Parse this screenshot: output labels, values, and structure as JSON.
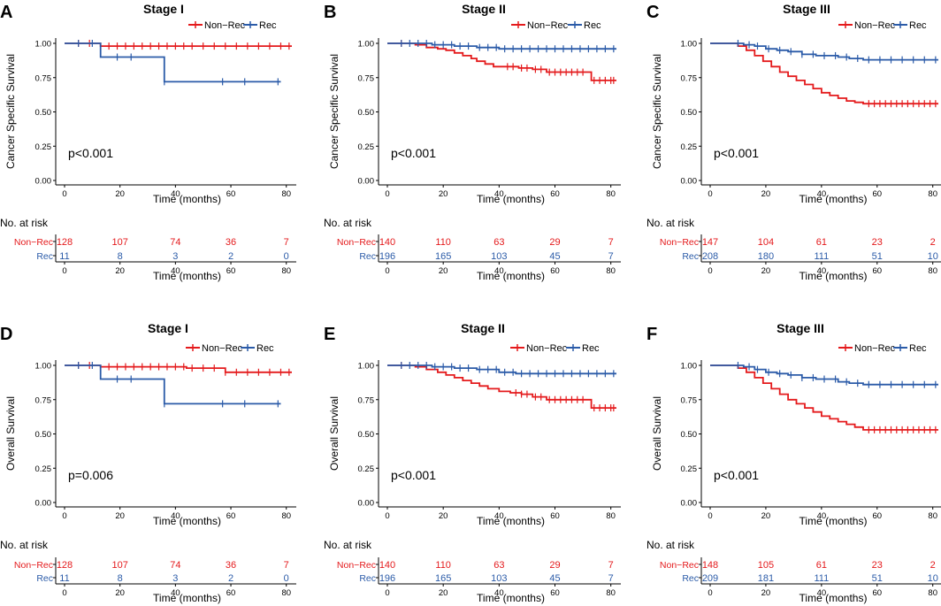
{
  "colors": {
    "non_rec": "#E41A1C",
    "rec": "#2B5BA8",
    "axis": "#000000"
  },
  "common": {
    "xlabel": "Time (months)",
    "risk_header": "No. at risk",
    "xticks": [
      0,
      20,
      40,
      60,
      80
    ],
    "yticks": [
      "0.00",
      "0.25",
      "0.50",
      "0.75",
      "1.00"
    ],
    "legend": [
      "Non−Rec",
      "Rec"
    ]
  },
  "chart_data": [
    {
      "type": "line",
      "letter": "A",
      "title": "Stage I",
      "ylabel": "Cancer Specific Survival",
      "pvalue": "p<0.001",
      "xlim": [
        0,
        82
      ],
      "ylim": [
        0,
        1
      ],
      "series": [
        {
          "name": "Non−Rec",
          "x": [
            0,
            13,
            82
          ],
          "y": [
            1.0,
            0.98,
            0.98
          ],
          "censor": [
            5,
            9,
            16,
            19,
            22,
            25,
            28,
            31,
            34,
            37,
            40,
            43,
            46,
            50,
            54,
            58,
            62,
            66,
            70,
            74,
            78,
            81
          ]
        },
        {
          "name": "Rec",
          "x": [
            0,
            13,
            36,
            78
          ],
          "y": [
            1.0,
            0.9,
            0.72,
            0.72
          ],
          "censor": [
            5,
            10,
            19,
            24,
            36,
            57,
            65,
            77
          ]
        }
      ],
      "risk": {
        "x": [
          0,
          20,
          40,
          60,
          80
        ],
        "non_rec": [
          "128",
          "107",
          "74",
          "36",
          "7"
        ],
        "rec": [
          "11",
          "8",
          "3",
          "2",
          "0"
        ]
      }
    },
    {
      "type": "line",
      "letter": "B",
      "title": "Stage II",
      "ylabel": "Cancer Specific Survival",
      "pvalue": "p<0.001",
      "xlim": [
        0,
        82
      ],
      "ylim": [
        0,
        1
      ],
      "series": [
        {
          "name": "Non−Rec",
          "x": [
            0,
            10,
            14,
            18,
            21,
            24,
            27,
            30,
            32,
            35,
            38,
            42,
            47,
            52,
            57,
            63,
            73,
            82
          ],
          "y": [
            1.0,
            0.99,
            0.97,
            0.96,
            0.95,
            0.93,
            0.91,
            0.89,
            0.87,
            0.85,
            0.83,
            0.83,
            0.82,
            0.81,
            0.79,
            0.79,
            0.73,
            0.73
          ],
          "censor": [
            5,
            43,
            45,
            48,
            50,
            53,
            55,
            58,
            60,
            62,
            64,
            66,
            68,
            70,
            74,
            76,
            78,
            80,
            81
          ]
        },
        {
          "name": "Rec",
          "x": [
            0,
            16,
            24,
            32,
            40,
            46,
            82
          ],
          "y": [
            1.0,
            0.99,
            0.98,
            0.97,
            0.96,
            0.96,
            0.96
          ],
          "censor": [
            5,
            8,
            11,
            14,
            17,
            20,
            23,
            26,
            29,
            33,
            36,
            39,
            42,
            45,
            48,
            51,
            54,
            57,
            60,
            63,
            66,
            69,
            72,
            75,
            78,
            81
          ]
        }
      ],
      "risk": {
        "x": [
          0,
          20,
          40,
          60,
          80
        ],
        "non_rec": [
          "140",
          "110",
          "63",
          "29",
          "7"
        ],
        "rec": [
          "196",
          "165",
          "103",
          "45",
          "7"
        ]
      }
    },
    {
      "type": "line",
      "letter": "C",
      "title": "Stage III",
      "ylabel": "Cancer Specific Survival",
      "pvalue": "p<0.001",
      "xlim": [
        0,
        82
      ],
      "ylim": [
        0,
        1
      ],
      "series": [
        {
          "name": "Non−Rec",
          "x": [
            0,
            10,
            13,
            16,
            19,
            22,
            25,
            28,
            31,
            34,
            37,
            40,
            43,
            46,
            49,
            52,
            55,
            82
          ],
          "y": [
            1.0,
            0.98,
            0.95,
            0.91,
            0.87,
            0.83,
            0.79,
            0.76,
            0.73,
            0.7,
            0.67,
            0.64,
            0.62,
            0.6,
            0.58,
            0.57,
            0.56,
            0.56
          ],
          "censor": [
            57,
            59,
            61,
            63,
            65,
            67,
            69,
            71,
            73,
            75,
            77,
            79,
            81
          ]
        },
        {
          "name": "Rec",
          "x": [
            0,
            12,
            16,
            20,
            24,
            28,
            33,
            38,
            46,
            50,
            55,
            82
          ],
          "y": [
            1.0,
            0.99,
            0.98,
            0.96,
            0.95,
            0.94,
            0.92,
            0.91,
            0.9,
            0.89,
            0.88,
            0.88
          ],
          "censor": [
            10,
            14,
            17,
            21,
            25,
            29,
            33,
            37,
            41,
            45,
            49,
            53,
            57,
            61,
            65,
            69,
            73,
            77,
            81
          ]
        }
      ],
      "risk": {
        "x": [
          0,
          20,
          40,
          60,
          80
        ],
        "non_rec": [
          "147",
          "104",
          "61",
          "23",
          "2"
        ],
        "rec": [
          "208",
          "180",
          "111",
          "51",
          "10"
        ]
      }
    },
    {
      "type": "line",
      "letter": "D",
      "title": "Stage I",
      "ylabel": "Overall Survival",
      "pvalue": "p=0.006",
      "xlim": [
        0,
        82
      ],
      "ylim": [
        0,
        1
      ],
      "series": [
        {
          "name": "Non−Rec",
          "x": [
            0,
            13,
            44,
            58,
            82
          ],
          "y": [
            1.0,
            0.99,
            0.98,
            0.95,
            0.95
          ],
          "censor": [
            5,
            9,
            16,
            19,
            22,
            25,
            28,
            31,
            34,
            37,
            40,
            43,
            46,
            50,
            54,
            58,
            62,
            66,
            70,
            74,
            78,
            81
          ]
        },
        {
          "name": "Rec",
          "x": [
            0,
            13,
            36,
            78
          ],
          "y": [
            1.0,
            0.9,
            0.72,
            0.72
          ],
          "censor": [
            5,
            10,
            19,
            24,
            36,
            57,
            65,
            77
          ]
        }
      ],
      "risk": {
        "x": [
          0,
          20,
          40,
          60,
          80
        ],
        "non_rec": [
          "128",
          "107",
          "74",
          "36",
          "7"
        ],
        "rec": [
          "11",
          "8",
          "3",
          "2",
          "0"
        ]
      }
    },
    {
      "type": "line",
      "letter": "E",
      "title": "Stage II",
      "ylabel": "Overall Survival",
      "pvalue": "p<0.001",
      "xlim": [
        0,
        82
      ],
      "ylim": [
        0,
        1
      ],
      "series": [
        {
          "name": "Non−Rec",
          "x": [
            0,
            10,
            14,
            18,
            21,
            24,
            27,
            30,
            33,
            36,
            40,
            44,
            48,
            52,
            57,
            63,
            73,
            82
          ],
          "y": [
            1.0,
            0.99,
            0.97,
            0.95,
            0.93,
            0.91,
            0.89,
            0.87,
            0.85,
            0.83,
            0.81,
            0.8,
            0.79,
            0.77,
            0.75,
            0.75,
            0.69,
            0.69
          ],
          "censor": [
            5,
            46,
            48,
            50,
            53,
            55,
            58,
            60,
            62,
            64,
            66,
            68,
            70,
            74,
            76,
            78,
            80,
            81
          ]
        },
        {
          "name": "Rec",
          "x": [
            0,
            16,
            24,
            32,
            40,
            46,
            82
          ],
          "y": [
            1.0,
            0.99,
            0.98,
            0.97,
            0.95,
            0.94,
            0.94
          ],
          "censor": [
            5,
            8,
            11,
            14,
            17,
            20,
            23,
            26,
            29,
            33,
            36,
            39,
            42,
            45,
            48,
            51,
            54,
            57,
            60,
            63,
            66,
            69,
            72,
            75,
            78,
            81
          ]
        }
      ],
      "risk": {
        "x": [
          0,
          20,
          40,
          60,
          80
        ],
        "non_rec": [
          "140",
          "110",
          "63",
          "29",
          "7"
        ],
        "rec": [
          "196",
          "165",
          "103",
          "45",
          "7"
        ]
      }
    },
    {
      "type": "line",
      "letter": "F",
      "title": "Stage III",
      "ylabel": "Overall Survival",
      "pvalue": "p<0.001",
      "xlim": [
        0,
        82
      ],
      "ylim": [
        0,
        1
      ],
      "series": [
        {
          "name": "Non−Rec",
          "x": [
            0,
            10,
            13,
            16,
            19,
            22,
            25,
            28,
            31,
            34,
            37,
            40,
            43,
            46,
            49,
            52,
            55,
            82
          ],
          "y": [
            1.0,
            0.98,
            0.95,
            0.91,
            0.87,
            0.83,
            0.79,
            0.75,
            0.72,
            0.69,
            0.66,
            0.63,
            0.61,
            0.59,
            0.57,
            0.55,
            0.53,
            0.53
          ],
          "censor": [
            57,
            59,
            61,
            63,
            65,
            67,
            69,
            71,
            73,
            75,
            77,
            79,
            81
          ]
        },
        {
          "name": "Rec",
          "x": [
            0,
            12,
            16,
            20,
            24,
            28,
            33,
            38,
            46,
            50,
            55,
            82
          ],
          "y": [
            1.0,
            0.99,
            0.97,
            0.95,
            0.94,
            0.93,
            0.91,
            0.9,
            0.88,
            0.87,
            0.86,
            0.86
          ],
          "censor": [
            10,
            14,
            17,
            21,
            25,
            29,
            33,
            37,
            41,
            45,
            49,
            53,
            57,
            61,
            65,
            69,
            73,
            77,
            81
          ]
        }
      ],
      "risk": {
        "x": [
          0,
          20,
          40,
          60,
          80
        ],
        "non_rec": [
          "148",
          "105",
          "61",
          "23",
          "2"
        ],
        "rec": [
          "209",
          "181",
          "111",
          "51",
          "10"
        ]
      }
    }
  ]
}
